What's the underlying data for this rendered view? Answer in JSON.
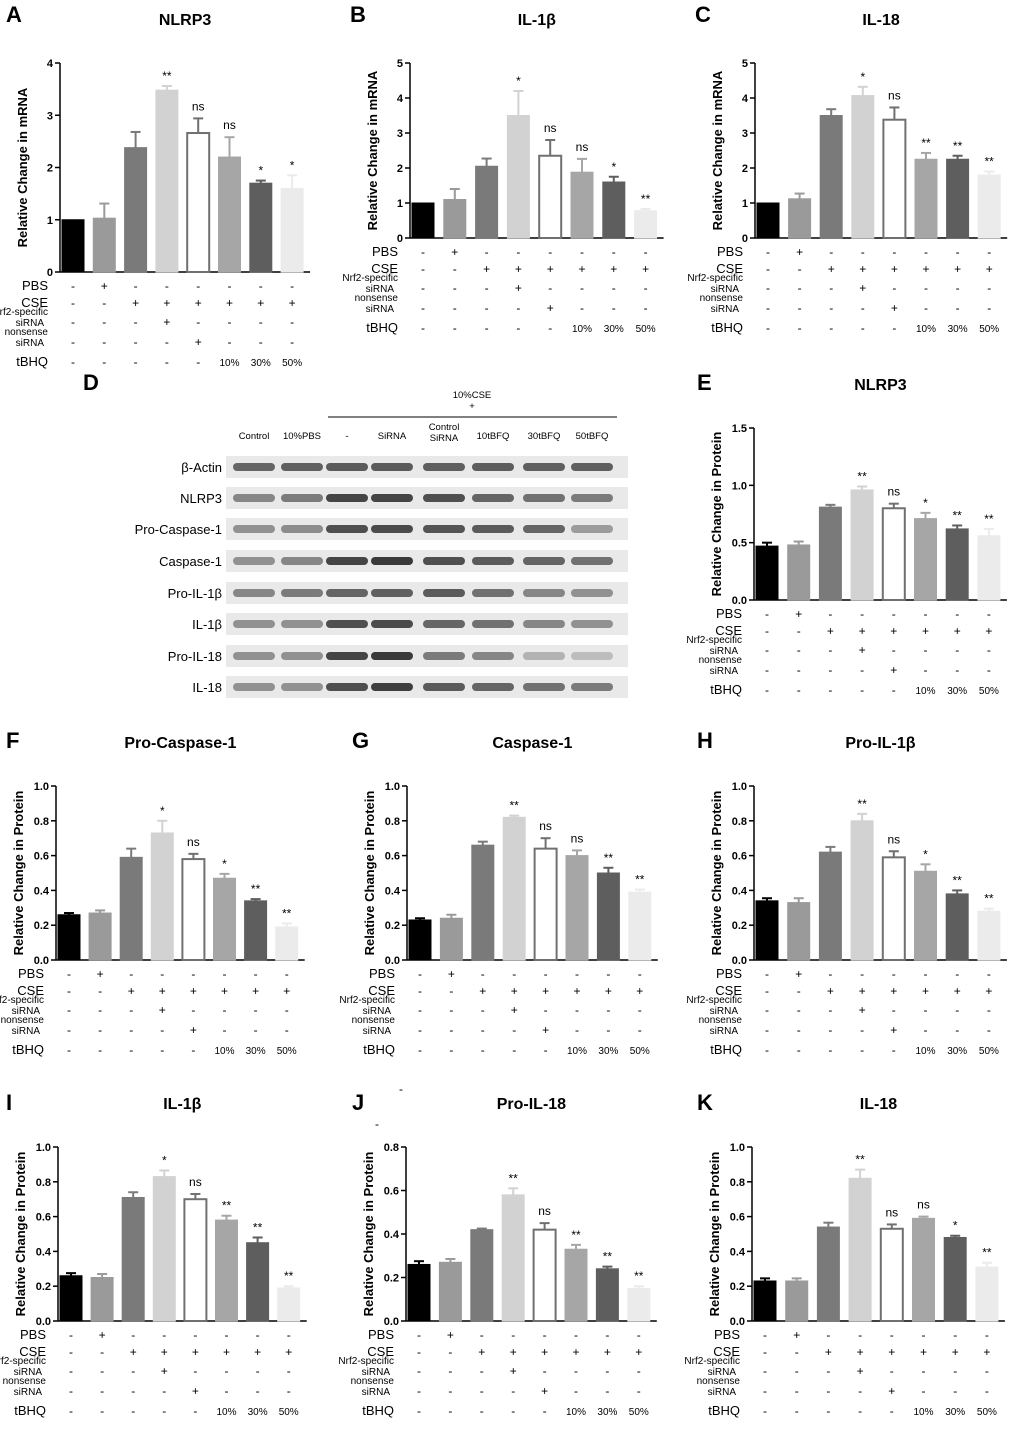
{
  "figure": {
    "panel_d_letter": "D",
    "row_labels": {
      "pbs": "PBS",
      "cse": "CSE",
      "nrf2_line1": "Nrf2-specific",
      "nrf2_line2": "siRNA",
      "nonsense_line1": "nonsense",
      "nonsense_line2": "siRNA",
      "tbhq": "tBHQ"
    },
    "treatment_matrix": {
      "pbs": [
        "-",
        "+",
        "-",
        "-",
        "-",
        "-",
        "-",
        "-"
      ],
      "cse": [
        "-",
        "-",
        "+",
        "+",
        "+",
        "+",
        "+",
        "+"
      ],
      "nrf2": [
        "-",
        "-",
        "-",
        "+",
        "-",
        "-",
        "-",
        "-"
      ],
      "nonsense": [
        "-",
        "-",
        "-",
        "-",
        "+",
        "-",
        "-",
        "-"
      ],
      "tbhq": [
        "-",
        "-",
        "-",
        "-",
        "-",
        "10%",
        "30%",
        "50%"
      ]
    },
    "bar_colors": [
      "#000000",
      "#9a9a9a",
      "#7a7a7a",
      "#d2d2d2",
      "#ffffff",
      "#a6a6a6",
      "#5e5e5e",
      "#ebebeb"
    ],
    "bar_edge_colors": [
      "#000000",
      "#9a9a9a",
      "#7a7a7a",
      "#d2d2d2",
      "#707070",
      "#a6a6a6",
      "#5e5e5e",
      "#ebebeb"
    ],
    "stray_marks": [
      "-",
      "-"
    ],
    "western_blot": {
      "group_header_line1": "10%CSE",
      "group_header_line2": "+",
      "column_labels": [
        "Control",
        "10%PBS",
        "-",
        "SiRNA",
        "Control SiRNA",
        "10tBFQ",
        "30tBFQ",
        "50tBFQ"
      ],
      "row_labels": [
        "β-Actin",
        "NLRP3",
        "Pro-Caspase-1",
        "Caspase-1",
        "Pro-IL-1β",
        "IL-1β",
        "Pro-IL-18",
        "IL-18"
      ]
    }
  },
  "chart_data": [
    {
      "panel": "A",
      "type": "bar",
      "title": "NLRP3",
      "ylabel": "Relative Change in mRNA",
      "ylim": [
        0,
        4
      ],
      "yticks": [
        "0",
        "1",
        "2",
        "3",
        "4"
      ],
      "values": [
        1.0,
        1.03,
        2.38,
        3.48,
        2.66,
        2.2,
        1.7,
        1.6
      ],
      "errors": [
        0,
        0.28,
        0.3,
        0.08,
        0.28,
        0.38,
        0.05,
        0.25
      ],
      "significance": [
        "",
        "",
        "",
        "**",
        "ns",
        "ns",
        "*",
        "*"
      ]
    },
    {
      "panel": "B",
      "type": "bar",
      "title": "IL-1β",
      "ylabel": "Relative Change in mRNA",
      "ylim": [
        0,
        5
      ],
      "yticks": [
        "0",
        "1",
        "2",
        "3",
        "4",
        "5"
      ],
      "values": [
        1.0,
        1.1,
        2.05,
        3.5,
        2.35,
        1.88,
        1.6,
        0.78
      ],
      "errors": [
        0,
        0.3,
        0.22,
        0.7,
        0.45,
        0.38,
        0.15,
        0.05
      ],
      "significance": [
        "",
        "",
        "",
        "*",
        "ns",
        "ns",
        "*",
        "**"
      ]
    },
    {
      "panel": "C",
      "type": "bar",
      "title": "IL-18",
      "ylabel": "Relative Change in mRNA",
      "ylim": [
        0,
        5
      ],
      "yticks": [
        "0",
        "1",
        "2",
        "3",
        "4",
        "5"
      ],
      "values": [
        1.0,
        1.12,
        3.5,
        4.07,
        3.38,
        2.25,
        2.25,
        1.8
      ],
      "errors": [
        0,
        0.15,
        0.18,
        0.25,
        0.35,
        0.18,
        0.1,
        0.1
      ],
      "significance": [
        "",
        "",
        "",
        "*",
        "ns",
        "**",
        "**",
        "**"
      ]
    },
    {
      "panel": "E",
      "type": "bar",
      "title": "NLRP3",
      "ylabel": "Relative Change in Protein",
      "ylim": [
        0,
        1.5
      ],
      "yticks": [
        "0.0",
        "0.5",
        "1.0",
        "1.5"
      ],
      "values": [
        0.47,
        0.48,
        0.81,
        0.96,
        0.8,
        0.71,
        0.62,
        0.56
      ],
      "errors": [
        0.03,
        0.03,
        0.02,
        0.03,
        0.04,
        0.05,
        0.03,
        0.06
      ],
      "significance": [
        "",
        "",
        "",
        "**",
        "ns",
        "*",
        "**",
        "**"
      ]
    },
    {
      "panel": "F",
      "type": "bar",
      "title": "Pro-Caspase-1",
      "ylabel": "Relative Change in Protein",
      "ylim": [
        0,
        1.0
      ],
      "yticks": [
        "0.0",
        "0.2",
        "0.4",
        "0.6",
        "0.8",
        "1.0"
      ],
      "values": [
        0.26,
        0.27,
        0.59,
        0.73,
        0.58,
        0.47,
        0.34,
        0.19
      ],
      "errors": [
        0.01,
        0.015,
        0.05,
        0.07,
        0.03,
        0.025,
        0.01,
        0.02
      ],
      "significance": [
        "",
        "",
        "",
        "*",
        "ns",
        "*",
        "**",
        "**"
      ]
    },
    {
      "panel": "G",
      "type": "bar",
      "title": "Caspase-1",
      "ylabel": "Relative Change in Protein",
      "ylim": [
        0,
        1.0
      ],
      "yticks": [
        "0.0",
        "0.2",
        "0.4",
        "0.6",
        "0.8",
        "1.0"
      ],
      "values": [
        0.23,
        0.24,
        0.66,
        0.82,
        0.64,
        0.6,
        0.5,
        0.39
      ],
      "errors": [
        0.01,
        0.02,
        0.02,
        0.01,
        0.06,
        0.03,
        0.03,
        0.015
      ],
      "significance": [
        "",
        "",
        "",
        "**",
        "ns",
        "ns",
        "**",
        "**"
      ]
    },
    {
      "panel": "H",
      "type": "bar",
      "title": "Pro-IL-1β",
      "ylabel": "Relative Change in Protein",
      "ylim": [
        0,
        1.0
      ],
      "yticks": [
        "0.0",
        "0.2",
        "0.4",
        "0.6",
        "0.8",
        "1.0"
      ],
      "values": [
        0.34,
        0.33,
        0.62,
        0.8,
        0.59,
        0.51,
        0.38,
        0.28
      ],
      "errors": [
        0.015,
        0.025,
        0.03,
        0.04,
        0.035,
        0.04,
        0.02,
        0.015
      ],
      "significance": [
        "",
        "",
        "",
        "**",
        "ns",
        "*",
        "**",
        "**"
      ]
    },
    {
      "panel": "I",
      "type": "bar",
      "title": "IL-1β",
      "ylabel": "Relative Change in Protein",
      "ylim": [
        0,
        1.0
      ],
      "yticks": [
        "0.0",
        "0.2",
        "0.4",
        "0.6",
        "0.8",
        "1.0"
      ],
      "values": [
        0.26,
        0.25,
        0.71,
        0.83,
        0.7,
        0.58,
        0.45,
        0.19
      ],
      "errors": [
        0.015,
        0.02,
        0.03,
        0.035,
        0.03,
        0.025,
        0.03,
        0.01
      ],
      "significance": [
        "",
        "",
        "",
        "*",
        "ns",
        "**",
        "**",
        "**"
      ]
    },
    {
      "panel": "J",
      "type": "bar",
      "title": "Pro-IL-18",
      "ylabel": "Relative Change in Protein",
      "ylim": [
        0,
        0.8
      ],
      "yticks": [
        "0.0",
        "0.2",
        "0.4",
        "0.6",
        "0.8"
      ],
      "values": [
        0.26,
        0.27,
        0.42,
        0.58,
        0.42,
        0.33,
        0.24,
        0.15
      ],
      "errors": [
        0.015,
        0.015,
        0.005,
        0.03,
        0.03,
        0.02,
        0.01,
        0.01
      ],
      "significance": [
        "",
        "",
        "",
        "**",
        "ns",
        "**",
        "**",
        "**"
      ]
    },
    {
      "panel": "K",
      "type": "bar",
      "title": "IL-18",
      "ylabel": "Relative Change in Protein",
      "ylim": [
        0,
        1.0
      ],
      "yticks": [
        "0.0",
        "0.2",
        "0.4",
        "0.6",
        "0.8",
        "1.0"
      ],
      "values": [
        0.23,
        0.23,
        0.54,
        0.82,
        0.53,
        0.59,
        0.48,
        0.31
      ],
      "errors": [
        0.015,
        0.015,
        0.025,
        0.05,
        0.025,
        0.01,
        0.01,
        0.025
      ],
      "significance": [
        "",
        "",
        "",
        "**",
        "ns",
        "ns",
        "*",
        "**"
      ]
    }
  ]
}
